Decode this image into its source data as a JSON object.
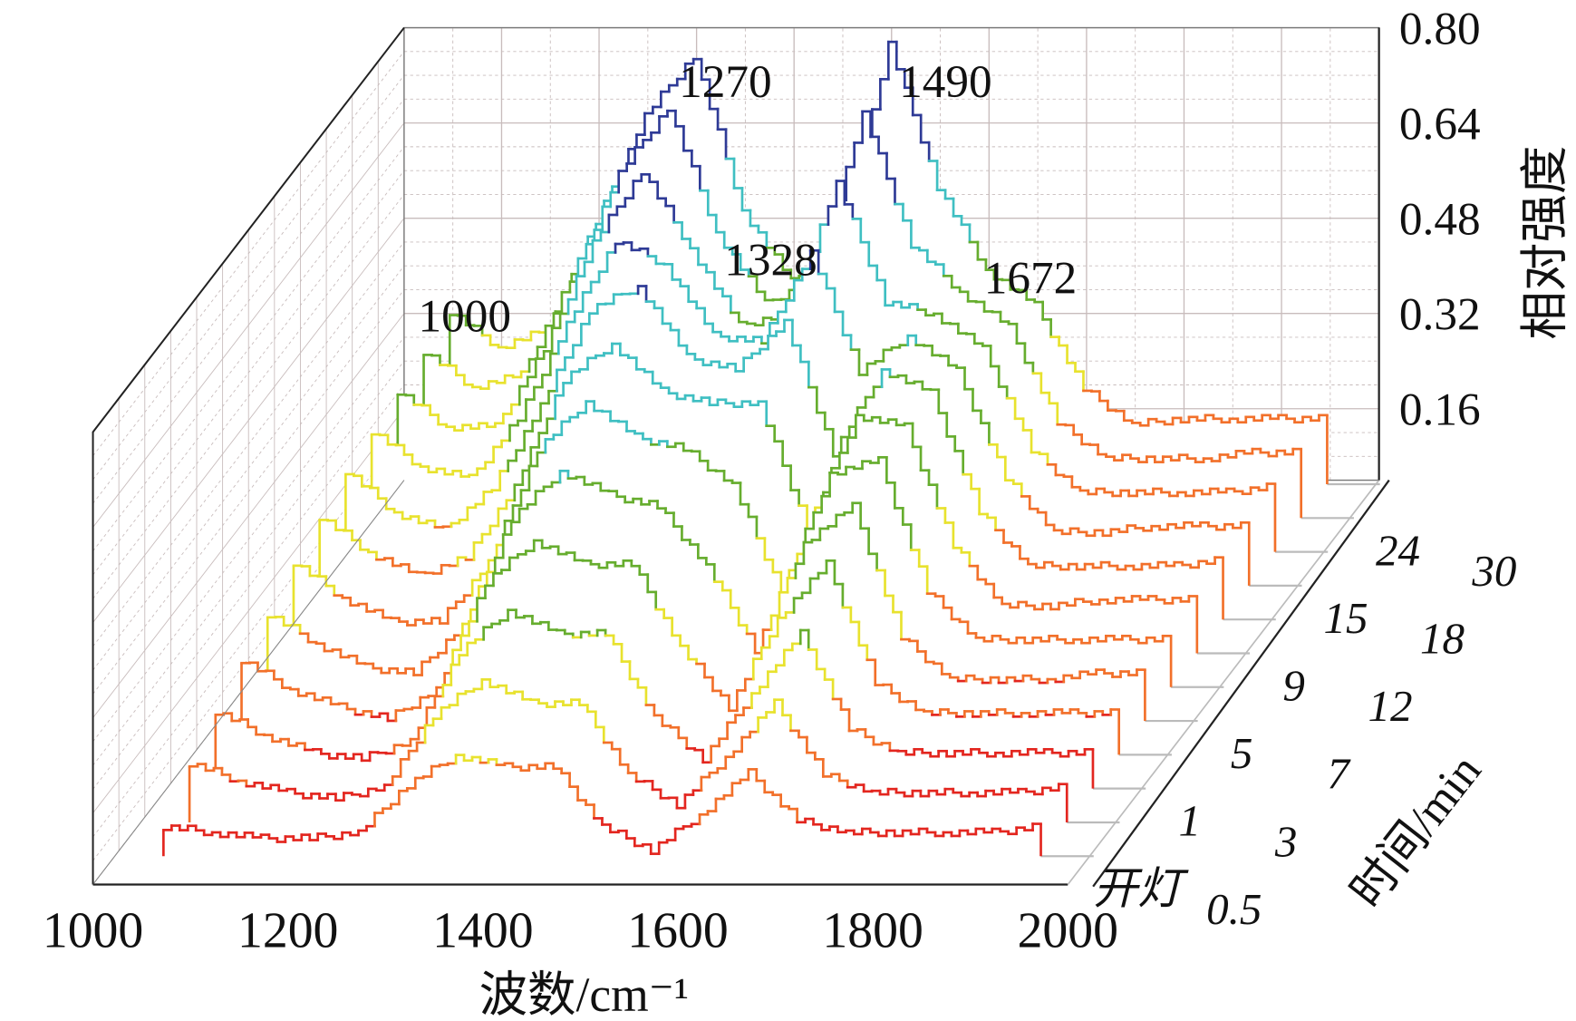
{
  "chart_data": {
    "type": "waterfall-3d-line",
    "xlabel": "波数/cm⁻¹",
    "ylabel": "时间/min",
    "zlabel": "相对强度",
    "xlim": [
      1000,
      2000
    ],
    "zlim": [
      0.04,
      0.8
    ],
    "x_ticks": [
      "1000",
      "1200",
      "1400",
      "1600",
      "1800",
      "2000"
    ],
    "z_ticks": [
      "0.16",
      "0.32",
      "0.48",
      "0.64",
      "0.80"
    ],
    "grid": true,
    "x": [
      1050,
      1100,
      1150,
      1200,
      1250,
      1300,
      1350,
      1400,
      1450,
      1500,
      1550,
      1600,
      1650,
      1700,
      1750,
      1800,
      1850,
      1900,
      1950
    ],
    "series": [
      {
        "name": "开灯",
        "values": [
          0.09,
          0.08,
          0.07,
          0.07,
          0.08,
          0.16,
          0.21,
          0.19,
          0.19,
          0.09,
          0.05,
          0.11,
          0.18,
          0.1,
          0.08,
          0.08,
          0.08,
          0.08,
          0.09
        ]
      },
      {
        "name": "0.5",
        "values": [
          0.14,
          0.11,
          0.09,
          0.08,
          0.1,
          0.22,
          0.28,
          0.24,
          0.24,
          0.12,
          0.07,
          0.15,
          0.24,
          0.12,
          0.09,
          0.09,
          0.09,
          0.09,
          0.1
        ]
      },
      {
        "name": "1",
        "values": [
          0.17,
          0.13,
          0.1,
          0.09,
          0.12,
          0.27,
          0.34,
          0.3,
          0.3,
          0.16,
          0.09,
          0.2,
          0.3,
          0.14,
          0.1,
          0.1,
          0.1,
          0.1,
          0.1
        ]
      },
      {
        "name": "3",
        "values": [
          0.2,
          0.15,
          0.12,
          0.1,
          0.15,
          0.33,
          0.4,
          0.36,
          0.36,
          0.22,
          0.12,
          0.27,
          0.36,
          0.16,
          0.11,
          0.11,
          0.11,
          0.11,
          0.11
        ]
      },
      {
        "name": "5",
        "values": [
          0.22,
          0.17,
          0.13,
          0.12,
          0.2,
          0.38,
          0.46,
          0.42,
          0.4,
          0.3,
          0.16,
          0.34,
          0.4,
          0.18,
          0.11,
          0.11,
          0.11,
          0.12,
          0.12
        ]
      },
      {
        "name": "7",
        "values": [
          0.25,
          0.19,
          0.15,
          0.15,
          0.25,
          0.44,
          0.52,
          0.46,
          0.44,
          0.38,
          0.2,
          0.4,
          0.42,
          0.2,
          0.12,
          0.12,
          0.12,
          0.12,
          0.12
        ]
      },
      {
        "name": "9",
        "values": [
          0.27,
          0.21,
          0.17,
          0.2,
          0.32,
          0.5,
          0.56,
          0.48,
          0.46,
          0.46,
          0.25,
          0.44,
          0.42,
          0.22,
          0.12,
          0.12,
          0.13,
          0.13,
          0.13
        ]
      },
      {
        "name": "12",
        "values": [
          0.29,
          0.22,
          0.19,
          0.26,
          0.4,
          0.56,
          0.6,
          0.48,
          0.46,
          0.54,
          0.32,
          0.46,
          0.42,
          0.22,
          0.13,
          0.13,
          0.13,
          0.13,
          0.14
        ]
      },
      {
        "name": "15",
        "values": [
          0.3,
          0.24,
          0.22,
          0.32,
          0.48,
          0.62,
          0.58,
          0.46,
          0.45,
          0.6,
          0.4,
          0.46,
          0.4,
          0.22,
          0.13,
          0.13,
          0.14,
          0.14,
          0.14
        ]
      },
      {
        "name": "18",
        "values": [
          0.31,
          0.25,
          0.25,
          0.38,
          0.56,
          0.68,
          0.55,
          0.42,
          0.44,
          0.66,
          0.46,
          0.44,
          0.38,
          0.21,
          0.14,
          0.14,
          0.14,
          0.14,
          0.15
        ]
      },
      {
        "name": "24",
        "values": [
          0.32,
          0.26,
          0.28,
          0.44,
          0.62,
          0.73,
          0.52,
          0.4,
          0.44,
          0.72,
          0.5,
          0.42,
          0.36,
          0.2,
          0.14,
          0.14,
          0.14,
          0.15,
          0.15
        ]
      },
      {
        "name": "30",
        "values": [
          0.33,
          0.27,
          0.3,
          0.48,
          0.66,
          0.76,
          0.5,
          0.38,
          0.44,
          0.78,
          0.54,
          0.4,
          0.34,
          0.2,
          0.14,
          0.15,
          0.15,
          0.15,
          0.15
        ]
      }
    ],
    "annotations": [
      "1000",
      "1270",
      "1328",
      "1490",
      "1672"
    ],
    "colormap": [
      "#e3261f",
      "#f2702a",
      "#e8e22e",
      "#66ad2e",
      "#3fbfc2",
      "#2e3a96"
    ]
  }
}
